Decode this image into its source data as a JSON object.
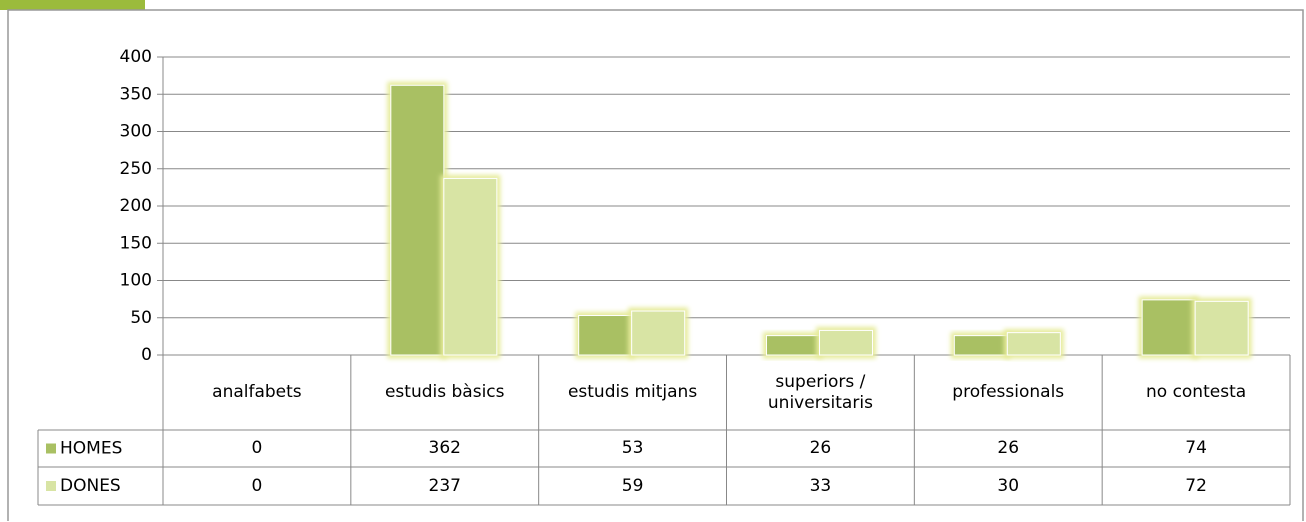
{
  "chart_data": {
    "type": "bar",
    "categories": [
      "analfabets",
      "estudis bàsics",
      "estudis mitjans",
      "superiors / universitaris",
      "professionals",
      "no contesta"
    ],
    "series": [
      {
        "name": "HOMES",
        "color": "#a9c063",
        "values": [
          0,
          362,
          53,
          26,
          26,
          74
        ]
      },
      {
        "name": "DONES",
        "color": "#d8e4a4",
        "values": [
          0,
          237,
          59,
          33,
          30,
          72
        ]
      }
    ],
    "ylim": [
      0,
      400
    ],
    "yticks": [
      0,
      50,
      100,
      150,
      200,
      250,
      300,
      350,
      400
    ],
    "grid": true
  }
}
